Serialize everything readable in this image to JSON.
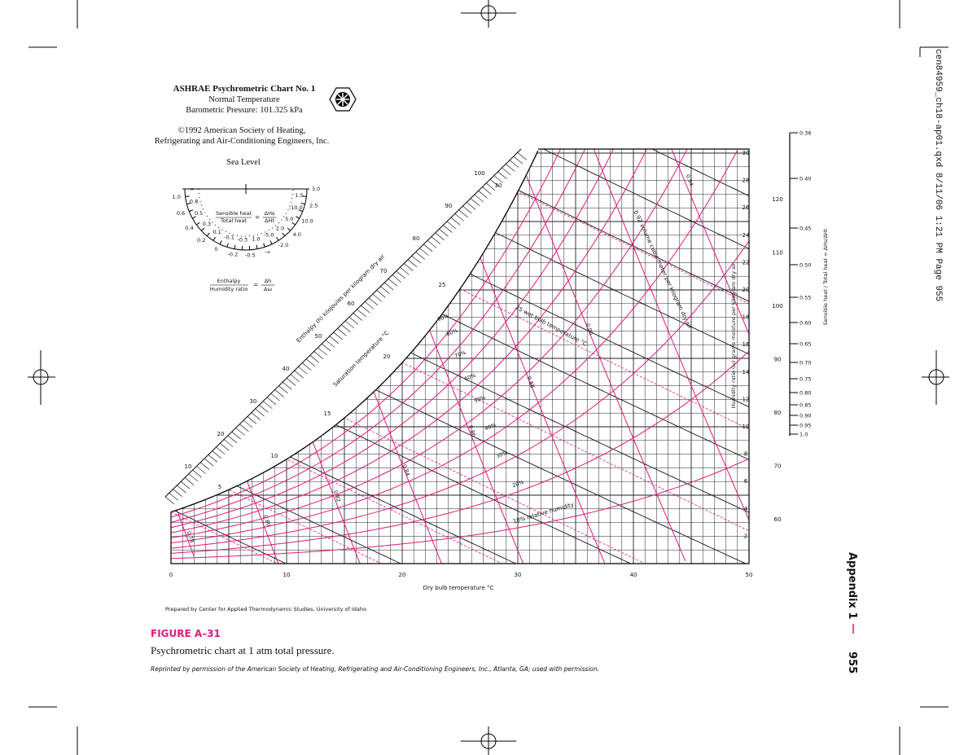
{
  "page": {
    "slug": "cen84959_ch18-ap01.qxd 8/11/06 1:21 PM Page 955",
    "appendix": "Appendix 1",
    "page_number": "955"
  },
  "chart": {
    "title": "ASHRAE Psychrometric Chart No. 1",
    "subtitle": "Normal Temperature",
    "pressure": "Barometric Pressure: 101.325 kPa",
    "copyright": [
      "©1992 American Society of Heating,",
      "Refrigerating and Air-Conditioning Engineers, Inc."
    ],
    "altitude": "Sea Level",
    "protractor": {
      "sensible": "Sensible heat",
      "total": "Total heat",
      "dhs": "ΔHs",
      "dht": "ΔHt",
      "enthalpy": "Enthalpy",
      "humidity": "Humidity ratio",
      "dh": "Δh",
      "dw": "Δω",
      "equals": "=",
      "scale": [
        "∞",
        "1.0",
        "0.8",
        "0.6",
        "0.5",
        "0.4",
        "0.3",
        "0.2",
        "0.1",
        "0",
        "-0.1",
        "-0.2",
        "-0.3",
        "-0.5",
        "1.0",
        "-∞",
        "-5.0",
        "-2.0",
        "2.0",
        "4.0",
        "5.0",
        "10.0",
        "-10.0",
        "2.5",
        "1.5",
        "3.0"
      ]
    },
    "enthalpy_label": "Enthalpy (h) kilojoules per kilogram dry air",
    "enthalpy_ticks": [
      "10",
      "20",
      "30",
      "40",
      "50",
      "60",
      "70",
      "80",
      "90",
      "100"
    ],
    "enthalpy_right_ticks": [
      "120",
      "110",
      "100",
      "90",
      "80",
      "70",
      "60"
    ],
    "saturation_label": "Saturation temperature °C",
    "saturation_ticks": [
      "5",
      "10",
      "15",
      "20",
      "25",
      "30"
    ],
    "wet_bulb_label": "25 wet bulb temperature °C",
    "volume_label": "0.92 volume cubic meter per kilogram dry air",
    "volume_ticks": [
      "0.78",
      "0.80",
      "0.82",
      "0.84",
      "0.86",
      "0.88",
      "0.90",
      "0.94"
    ],
    "rh_label": "10% relative humidity",
    "rh_ticks": [
      "20%",
      "30%",
      "40%",
      "50%",
      "60%",
      "70%",
      "80%",
      "90%"
    ],
    "x_label": "Dry bulb temperature °C",
    "x_ticks": [
      "0",
      "10",
      "20",
      "30",
      "40",
      "50"
    ],
    "y_label": "Humidity ratio (ω) grams moisture per kilogram dry air",
    "y_ticks": [
      "2",
      "4",
      "6",
      "8",
      "10",
      "12",
      "14",
      "16",
      "18",
      "20",
      "22",
      "24",
      "26",
      "28",
      "30"
    ],
    "shr_label": "Sensible heat / Total heat = ΔHs/ΔHt",
    "shr_ticks": [
      "0.36",
      "0.40",
      "0.45",
      "0.50",
      "0.55",
      "0.60",
      "0.65",
      "0.70",
      "0.75",
      "0.80",
      "0.85",
      "0.90",
      "0.95",
      "1.0"
    ],
    "credit": "Prepared by Center for Applied Thermodynamic Studies, University of Idaho"
  },
  "caption": {
    "label": "FIGURE A–31",
    "text": "Psychrometric chart at 1 atm total pressure.",
    "note": "Reprinted by permission of the American Society of Heating, Refrigerating and Air-Conditioning Engineers, Inc., Atlanta, GA; used with permission."
  }
}
